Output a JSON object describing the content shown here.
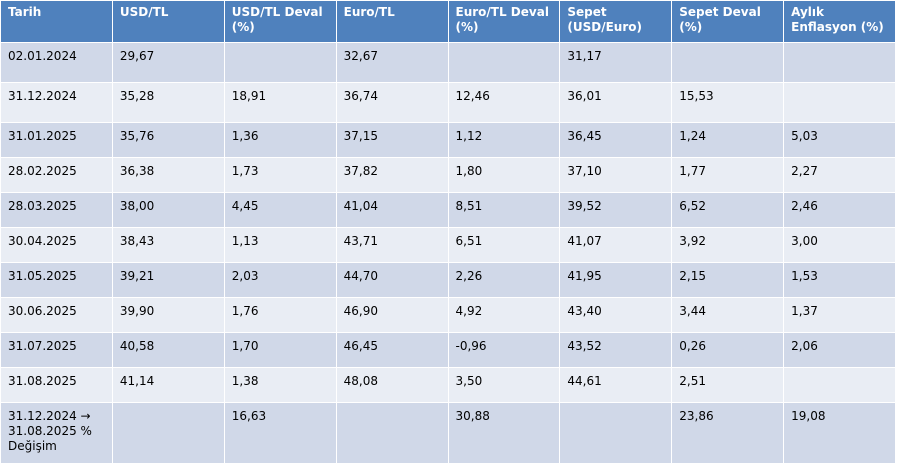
{
  "table": {
    "header": [
      "Tarih",
      "USD/TL",
      "USD/TL Deval (%)",
      "Euro/TL",
      "Euro/TL Deval (%)",
      "Sepet (USD/Euro)",
      "Sepet Deval (%)",
      "Aylık Enflasyon (%)"
    ],
    "rows": [
      [
        "02.01.2024",
        "29,67",
        null,
        "32,67",
        null,
        "31,17",
        null,
        null
      ],
      [
        "31.12.2024",
        "35,28",
        "18,91",
        "36,74",
        "12,46",
        "36,01",
        "15,53",
        null
      ],
      [
        "31.01.2025",
        "35,76",
        "1,36",
        "37,15",
        "1,12",
        "36,45",
        "1,24",
        "5,03"
      ],
      [
        "28.02.2025",
        "36,38",
        "1,73",
        "37,82",
        "1,80",
        "37,10",
        "1,77",
        "2,27"
      ],
      [
        "28.03.2025",
        "38,00",
        "4,45",
        "41,04",
        "8,51",
        "39,52",
        "6,52",
        "2,46"
      ],
      [
        "30.04.2025",
        "38,43",
        "1,13",
        "43,71",
        "6,51",
        "41,07",
        "3,92",
        "3,00"
      ],
      [
        "31.05.2025",
        "39,21",
        "2,03",
        "44,70",
        "2,26",
        "41,95",
        "2,15",
        "1,53"
      ],
      [
        "30.06.2025",
        "39,90",
        "1,76",
        "46,90",
        "4,92",
        "43,40",
        "3,44",
        "1,37"
      ],
      [
        "31.07.2025",
        "40,58",
        "1,70",
        "46,45",
        "-0,96",
        "43,52",
        "0,26",
        "2,06"
      ],
      [
        "31.08.2025",
        "41,14",
        "1,38",
        "48,08",
        "3,50",
        "44,61",
        "2,51",
        null
      ],
      [
        "31.12.2024 → 31.08.2025 % Değişim",
        null,
        "16,63",
        null,
        "30,88",
        null,
        "23,86",
        "19,08"
      ]
    ]
  }
}
